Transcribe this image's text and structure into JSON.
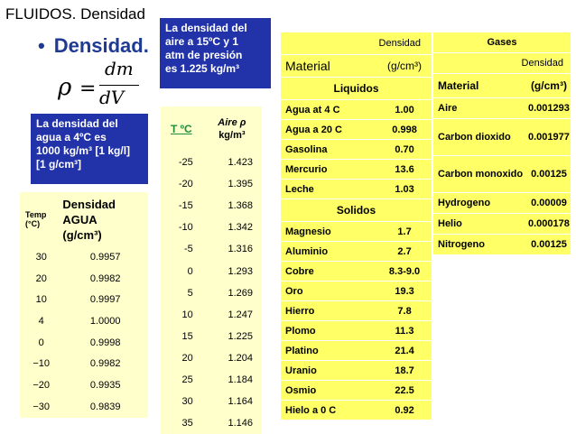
{
  "slide": {
    "title": "FLUIDOS. Densidad",
    "bullet": "Densidad.",
    "formula": {
      "lhs": "ρ",
      "eq": "=",
      "numerator": "dm",
      "denominator": "dV"
    }
  },
  "air_note": [
    "La densidad del",
    "aire a 15ºC y 1",
    "atm de presión",
    "es 1.225 kg/m³"
  ],
  "water_note": [
    "La densidad del",
    "agua a 4ºC es",
    "1000 kg/m³ [1 kg/l]",
    "[1 g/cm³]"
  ],
  "water_table": {
    "col1_header": [
      "Temp",
      "(°C)"
    ],
    "col2_header": [
      "Densidad",
      "AGUA",
      "(g/cm³)"
    ],
    "rows": [
      [
        "30",
        "0.9957"
      ],
      [
        "20",
        "0.9982"
      ],
      [
        "10",
        "0.9997"
      ],
      [
        "4",
        "1.0000"
      ],
      [
        "0",
        "0.9998"
      ],
      [
        "−10",
        "0.9982"
      ],
      [
        "−20",
        "0.9935"
      ],
      [
        "−30",
        "0.9839"
      ]
    ]
  },
  "air_table": {
    "col1_header": "T ºC",
    "col2_header": [
      "Aire",
      "ρ",
      "kg/m³"
    ],
    "rows": [
      [
        "-25",
        "1.423"
      ],
      [
        "-20",
        "1.395"
      ],
      [
        "-15",
        "1.368"
      ],
      [
        "-10",
        "1.342"
      ],
      [
        "-5",
        "1.316"
      ],
      [
        "0",
        "1.293"
      ],
      [
        "5",
        "1.269"
      ],
      [
        "10",
        "1.247"
      ],
      [
        "15",
        "1.225"
      ],
      [
        "20",
        "1.204"
      ],
      [
        "25",
        "1.184"
      ],
      [
        "30",
        "1.164"
      ],
      [
        "35",
        "1.146"
      ]
    ]
  },
  "liquids_solids": {
    "density_label": "Densidad",
    "material_label": "Material",
    "unit_label": "(g/cm³)",
    "liquids_title": "Liquidos",
    "liquids": [
      [
        "Agua at 4 C",
        "1.00"
      ],
      [
        "Agua a 20 C",
        "0.998"
      ],
      [
        "Gasolina",
        "0.70"
      ],
      [
        "Mercurio",
        "13.6"
      ],
      [
        "Leche",
        "1.03"
      ]
    ],
    "solids_title": "Solidos",
    "solids": [
      [
        "Magnesio",
        "1.7"
      ],
      [
        "Aluminio",
        "2.7"
      ],
      [
        "Cobre",
        "8.3-9.0"
      ],
      [
        "Oro",
        "19.3"
      ],
      [
        "Hierro",
        "7.8"
      ],
      [
        "Plomo",
        "11.3"
      ],
      [
        "Platino",
        "21.4"
      ],
      [
        "Uranio",
        "18.7"
      ],
      [
        "Osmio",
        "22.5"
      ],
      [
        "Hielo a 0 C",
        "0.92"
      ]
    ]
  },
  "gases": {
    "title": "Gases",
    "density_label": "Densidad",
    "material_label": "Material",
    "unit_label": "(g/cm³)",
    "rows": [
      [
        "Aire",
        "0.001293"
      ],
      [
        "Carbon dioxido",
        "0.001977"
      ],
      [
        "Carbon monoxido",
        "0.00125"
      ],
      [
        "Hydrogeno",
        "0.00009"
      ],
      [
        "Helio",
        "0.000178"
      ],
      [
        "Nitrogeno",
        "0.00125"
      ]
    ]
  },
  "colors": {
    "note_box": "#2233aa",
    "light_table": "#ffffcc",
    "bright_table": "#ffff66",
    "bullet_text": "#1f3a93",
    "temp_header": "#1a8f3c"
  }
}
